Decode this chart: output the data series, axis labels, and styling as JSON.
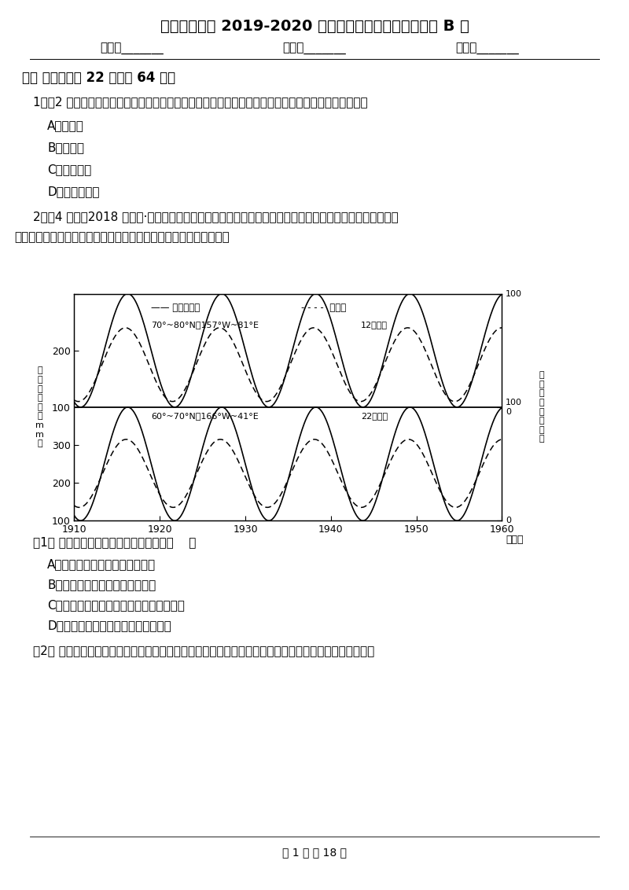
{
  "title": "四川省达州市 2019-2020 年度高一上学期期末地理试卷 B 卷",
  "name_line_parts": [
    "姓名：_______",
    "班级：_______",
    "成绩：_______"
  ],
  "section1_title": "一、 选择题（共 22 题；共 64 分）",
  "q1_text": "1．（2 分）一条向东流的河流，南岸受水流的冲刷比北岸严重，该河位于（只考虑地转偏向力的影响）",
  "q1_options": [
    "A．北半球",
    "B．南半球",
    "C．赤道地区",
    "D．跨东西半球"
  ],
  "q2_text": "2．（4 分）（2018 高一上·湛江月考）太阳黑子活动的变化会对地球的气候产生明显影响，下图显示北半球",
  "q2_text2": "部分高纬度地区太阳黑子活动与年均降水量的关系。据此下列各题。",
  "q2_sub1": "（1） 观测显示，所测地区年平均降水量（    ）",
  "q2_sub1_options": [
    "A．随太阳黑子活动的增强而增大",
    "B．随太阳黑子活动的增强而减小",
    "C．变化周期与太阳黑子活动周期大致吻合",
    "D．变化周期与太阳黑子活动周期无关"
  ],
  "q2_sub2": "（2） 统计数据表明，在多数太阳活动高峰年，全球农业倾向于增产；在太阳活动低峰年，歉收的几率更高",
  "footer": "第 1 页 共 18 页",
  "bg_color": "#ffffff",
  "text_color": "#000000"
}
